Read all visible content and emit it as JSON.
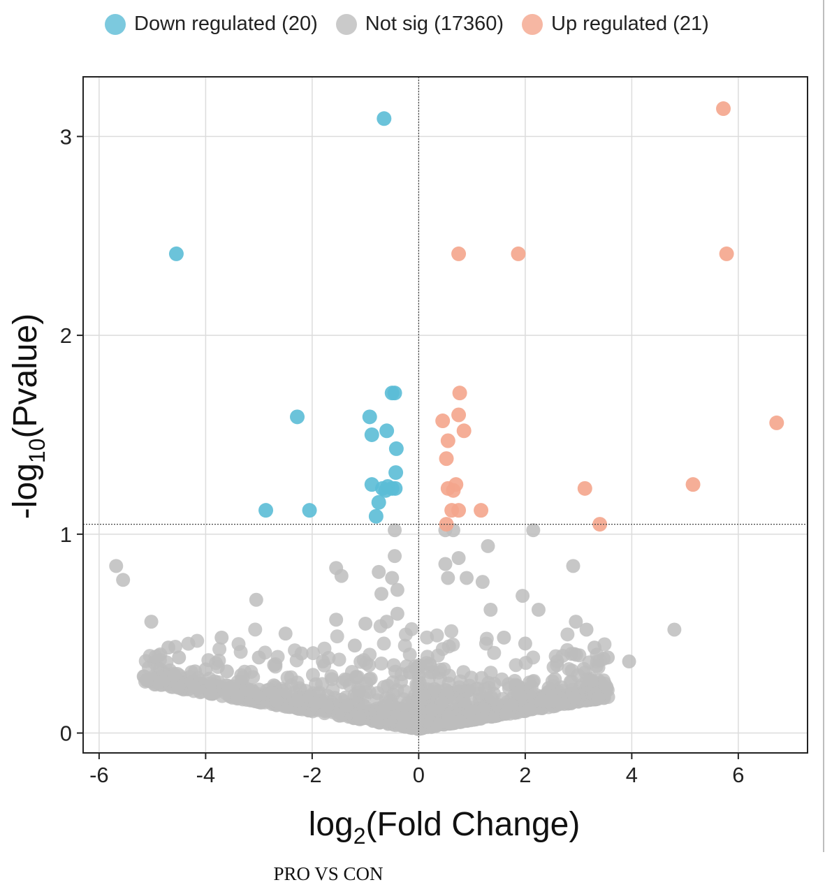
{
  "legend": [
    {
      "label": "Down regulated (20)",
      "color": "#5bbcd6"
    },
    {
      "label": "Not sig (17360)",
      "color": "#bdbdbd"
    },
    {
      "label": "Up regulated (21)",
      "color": "#f4a58c"
    }
  ],
  "caption": "PRO VS CON",
  "chart_data": {
    "type": "scatter",
    "xlabel_main": "log",
    "xlabel_sub": "2",
    "xlabel_rest": "(Fold Change)",
    "ylabel_main": "-log",
    "ylabel_sub": "10",
    "ylabel_rest": "(Pvalue)",
    "xlim": [
      -6.3,
      7.3
    ],
    "ylim": [
      -0.1,
      3.3
    ],
    "x_ticks": [
      -6,
      -4,
      -2,
      0,
      2,
      4,
      6
    ],
    "x_tick_labels": [
      "-6",
      "-4",
      "-2",
      "0",
      "2",
      "4",
      "6"
    ],
    "y_ticks": [
      0,
      1,
      2,
      3
    ],
    "y_tick_labels": [
      "0",
      "1",
      "2",
      "3"
    ],
    "grid": true,
    "thresholds": {
      "x": 0,
      "y": 1.05
    },
    "legend_position": "top",
    "series": [
      {
        "name": "Down regulated (20)",
        "color": "#5bbcd6",
        "points": [
          [
            -0.65,
            3.09
          ],
          [
            -4.55,
            2.41
          ],
          [
            -2.28,
            1.59
          ],
          [
            -0.92,
            1.59
          ],
          [
            -0.45,
            1.71
          ],
          [
            -0.5,
            1.71
          ],
          [
            -0.88,
            1.5
          ],
          [
            -0.6,
            1.52
          ],
          [
            -0.42,
            1.43
          ],
          [
            -0.43,
            1.31
          ],
          [
            -0.88,
            1.25
          ],
          [
            -0.58,
            1.24
          ],
          [
            -0.5,
            1.23
          ],
          [
            -0.44,
            1.23
          ],
          [
            -0.62,
            1.22
          ],
          [
            -0.75,
            1.16
          ],
          [
            -2.87,
            1.12
          ],
          [
            -2.05,
            1.12
          ],
          [
            -0.8,
            1.09
          ],
          [
            -0.68,
            1.23
          ]
        ]
      },
      {
        "name": "Up regulated (21)",
        "color": "#f4a58c",
        "points": [
          [
            5.72,
            3.14
          ],
          [
            0.75,
            2.41
          ],
          [
            1.87,
            2.41
          ],
          [
            5.78,
            2.41
          ],
          [
            0.77,
            1.71
          ],
          [
            0.75,
            1.6
          ],
          [
            0.45,
            1.57
          ],
          [
            6.72,
            1.56
          ],
          [
            0.85,
            1.52
          ],
          [
            0.55,
            1.47
          ],
          [
            0.52,
            1.38
          ],
          [
            0.7,
            1.25
          ],
          [
            0.55,
            1.23
          ],
          [
            0.65,
            1.22
          ],
          [
            3.12,
            1.23
          ],
          [
            5.15,
            1.25
          ],
          [
            0.62,
            1.12
          ],
          [
            0.75,
            1.12
          ],
          [
            1.17,
            1.12
          ],
          [
            3.4,
            1.05
          ],
          [
            0.52,
            1.05
          ]
        ]
      }
    ],
    "not_sig": {
      "name": "Not sig (17360)",
      "color": "#bdbdbd",
      "points": [
        [
          -5.68,
          0.84
        ],
        [
          -5.55,
          0.77
        ],
        [
          -5.02,
          0.56
        ],
        [
          -4.7,
          0.43
        ],
        [
          -4.5,
          0.38
        ],
        [
          -4.0,
          0.32
        ],
        [
          -3.7,
          0.48
        ],
        [
          -3.6,
          0.31
        ],
        [
          -3.05,
          0.67
        ],
        [
          -3.0,
          0.38
        ],
        [
          -2.5,
          0.5
        ],
        [
          -1.55,
          0.83
        ],
        [
          -1.45,
          0.79
        ],
        [
          -1.55,
          0.57
        ],
        [
          -1.0,
          0.55
        ],
        [
          -0.75,
          0.81
        ],
        [
          -0.7,
          0.7
        ],
        [
          -0.45,
          0.89
        ],
        [
          -0.45,
          1.02
        ],
        [
          -0.5,
          0.78
        ],
        [
          -0.4,
          0.72
        ],
        [
          -0.4,
          0.6
        ],
        [
          -0.6,
          0.56
        ],
        [
          0.5,
          1.02
        ],
        [
          0.65,
          1.02
        ],
        [
          0.5,
          0.85
        ],
        [
          0.75,
          0.88
        ],
        [
          0.55,
          0.78
        ],
        [
          0.9,
          0.78
        ],
        [
          1.3,
          0.94
        ],
        [
          1.2,
          0.76
        ],
        [
          1.95,
          0.69
        ],
        [
          2.15,
          1.02
        ],
        [
          2.9,
          0.84
        ],
        [
          2.25,
          0.62
        ],
        [
          2.95,
          0.56
        ],
        [
          3.15,
          0.52
        ],
        [
          3.3,
          0.43
        ],
        [
          3.55,
          0.38
        ],
        [
          3.95,
          0.36
        ],
        [
          4.8,
          0.52
        ],
        [
          1.35,
          0.62
        ],
        [
          1.6,
          0.48
        ],
        [
          2.0,
          0.45
        ],
        [
          2.6,
          0.36
        ],
        [
          -2.2,
          0.4
        ],
        [
          -1.8,
          0.36
        ],
        [
          -1.2,
          0.44
        ],
        [
          -3.3,
          0.28
        ],
        [
          -4.2,
          0.31
        ]
      ]
    }
  }
}
